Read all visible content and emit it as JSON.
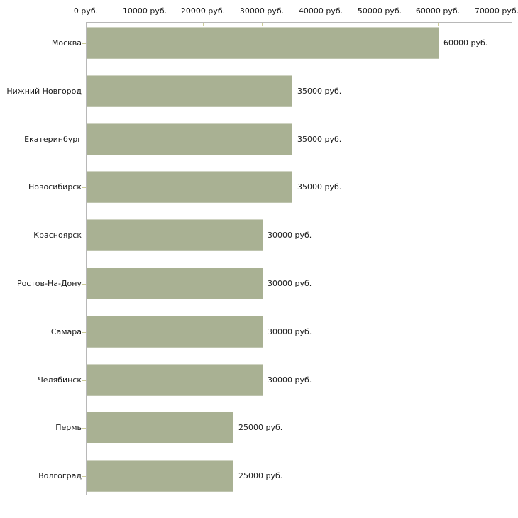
{
  "chart_data": {
    "type": "bar",
    "orientation": "horizontal",
    "title": "",
    "categories": [
      "Москва",
      "Нижний Новгород",
      "Екатеринбург",
      "Новосибирск",
      "Красноярск",
      "Ростов-На-Дону",
      "Самара",
      "Челябинск",
      "Пермь",
      "Волгоград"
    ],
    "values": [
      60000,
      35000,
      35000,
      35000,
      30000,
      30000,
      30000,
      30000,
      25000,
      25000
    ],
    "value_labels": [
      "60000 руб.",
      "35000 руб.",
      "35000 руб.",
      "35000 руб.",
      "30000 руб.",
      "30000 руб.",
      "30000 руб.",
      "30000 руб.",
      "25000 руб.",
      "25000 руб."
    ],
    "x_axis": {
      "position": "top",
      "min": 0,
      "max": 70000,
      "tick_values": [
        0,
        10000,
        20000,
        30000,
        40000,
        50000,
        60000,
        70000
      ],
      "tick_labels": [
        "0 руб.",
        "10000 руб.",
        "20000 руб.",
        "30000 руб.",
        "40000 руб.",
        "50000 руб.",
        "60000 руб.",
        "70000 руб."
      ]
    },
    "ylabel": "",
    "xlabel": "",
    "legend": "none",
    "grid": "off",
    "colors": {
      "bar_fill": "#a9b193",
      "axis_line": "#b8b8b8",
      "tick_mark": "#cccc99",
      "text": "#1a1a1a",
      "background": "#ffffff"
    }
  }
}
